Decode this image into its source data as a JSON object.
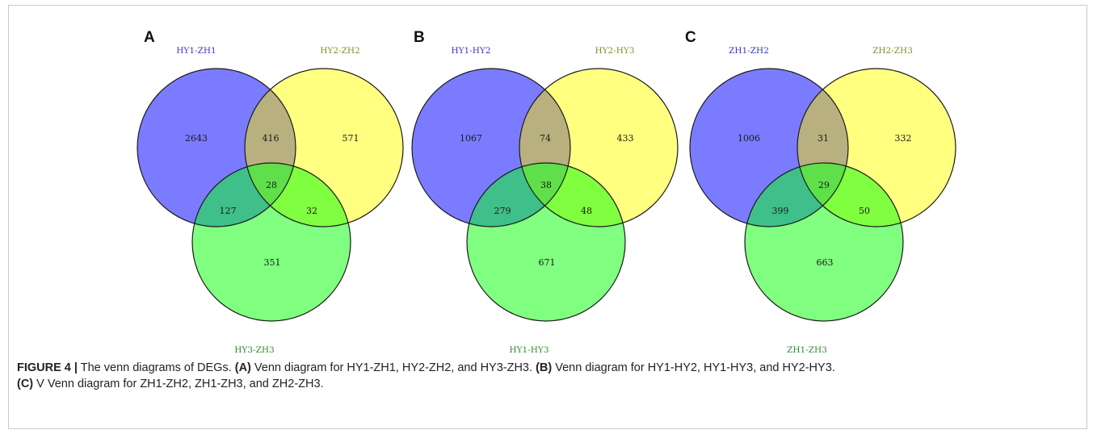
{
  "panels": [
    {
      "letter": "A",
      "sets": [
        {
          "label": "HY1-ZH1",
          "color": "#7b7bff",
          "label_color": "#3535c8"
        },
        {
          "label": "HY2-ZH2",
          "color": "#ffff80",
          "label_color": "#8a8a2e"
        },
        {
          "label": "HY3-ZH3",
          "color": "#80ff80",
          "label_color": "#2e8a2e"
        }
      ],
      "regions": {
        "only_1": "2643",
        "only_2": "571",
        "only_3": "351",
        "r12": "416",
        "r13": "127",
        "r23": "32",
        "r123": "28"
      }
    },
    {
      "letter": "B",
      "sets": [
        {
          "label": "HY1-HY2",
          "color": "#7b7bff",
          "label_color": "#3535c8"
        },
        {
          "label": "HY2-HY3",
          "color": "#ffff80",
          "label_color": "#8a8a2e"
        },
        {
          "label": "HY1-HY3",
          "color": "#80ff80",
          "label_color": "#2e8a2e"
        }
      ],
      "regions": {
        "only_1": "1067",
        "only_2": "433",
        "only_3": "671",
        "r12": "74",
        "r13": "279",
        "r23": "48",
        "r123": "38"
      }
    },
    {
      "letter": "C",
      "sets": [
        {
          "label": "ZH1-ZH2",
          "color": "#7b7bff",
          "label_color": "#3535c8"
        },
        {
          "label": "ZH2-ZH3",
          "color": "#ffff80",
          "label_color": "#8a8a2e"
        },
        {
          "label": "ZH1-ZH3",
          "color": "#80ff80",
          "label_color": "#2e8a2e"
        }
      ],
      "regions": {
        "only_1": "1006",
        "only_2": "332",
        "only_3": "663",
        "r12": "31",
        "r13": "399",
        "r23": "50",
        "r123": "29"
      }
    }
  ],
  "region_colors": {
    "r12": "#b8b07f",
    "r13": "#3fbf8a",
    "r23": "#80ff40",
    "r123": "#5fdf4a"
  },
  "caption": {
    "figure_label": "FIGURE 4 |",
    "text_1": " The venn diagrams of DEGs. ",
    "a_label": "(A)",
    "a_text": " Venn diagram for HY1-ZH1, HY2-ZH2, and HY3-ZH3. ",
    "b_label": "(B)",
    "b_text": " Venn diagram for HY1-HY2, HY1-HY3, and HY2-HY3.",
    "c_label": "(C)",
    "c_text": " V Venn diagram for ZH1-ZH2, ZH1-ZH3, and ZH2-ZH3."
  }
}
